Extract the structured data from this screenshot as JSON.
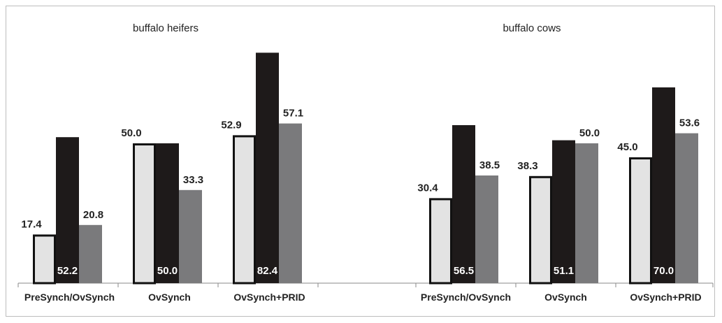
{
  "chart_data": {
    "type": "bar",
    "groups": [
      {
        "title": "buffalo heifers",
        "categories": [
          "PreSynch/OvSynch",
          "OvSynch",
          "OvSynch+PRID"
        ],
        "series": [
          {
            "values": [
              17.4,
              50.0,
              52.9
            ]
          },
          {
            "values": [
              52.2,
              50.0,
              82.4
            ]
          },
          {
            "values": [
              20.8,
              33.3,
              57.1
            ]
          }
        ]
      },
      {
        "title": "buffalo cows",
        "categories": [
          "PreSynch/OvSynch",
          "OvSynch",
          "OvSynch+PRID"
        ],
        "series": [
          {
            "values": [
              30.4,
              38.3,
              45.0
            ]
          },
          {
            "values": [
              56.5,
              51.1,
              70.0
            ]
          },
          {
            "values": [
              38.5,
              50.0,
              53.6
            ]
          }
        ]
      }
    ],
    "series_colors": [
      "#e3e3e3",
      "#1e1a1a",
      "#7a7a7c"
    ],
    "light_bar_border": "#111111"
  }
}
